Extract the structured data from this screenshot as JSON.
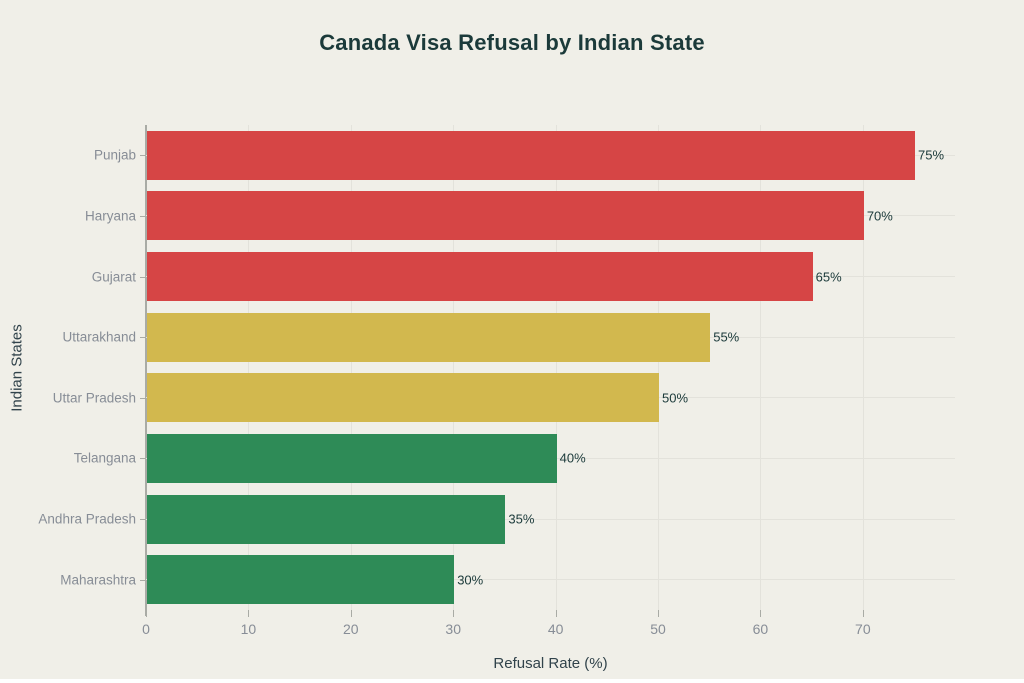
{
  "chart_data": {
    "type": "bar",
    "orientation": "horizontal",
    "title": "Canada Visa Refusal by Indian State",
    "xlabel": "Refusal Rate (%)",
    "ylabel": "Indian States",
    "categories": [
      "Punjab",
      "Haryana",
      "Gujarat",
      "Uttarakhand",
      "Uttar Pradesh",
      "Telangana",
      "Andhra Pradesh",
      "Maharashtra"
    ],
    "values": [
      75,
      70,
      65,
      55,
      50,
      40,
      35,
      30
    ],
    "value_labels": [
      "75%",
      "70%",
      "65%",
      "55%",
      "50%",
      "40%",
      "35%",
      "30%"
    ],
    "bar_colors": [
      "red",
      "red",
      "red",
      "yellow",
      "yellow",
      "green",
      "green",
      "green"
    ],
    "palette": {
      "red": "#d64545",
      "yellow": "#d2b84e",
      "green": "#2e8b57"
    },
    "xlim": [
      0,
      79
    ],
    "xticks": [
      0,
      10,
      20,
      30,
      40,
      50,
      60,
      70
    ],
    "xtick_labels": [
      "0",
      "10",
      "20",
      "30",
      "40",
      "50",
      "60",
      "70"
    ],
    "grid": true,
    "legend": false
  },
  "style": {
    "background": "#f0efe8",
    "title_color": "#1b3a3a",
    "axis_title_color": "#31434b",
    "tick_label_color": "#878d96",
    "value_label_color": "#1b3a3a",
    "gridline_color": "#e3e2db",
    "axis_line_color": "#a9aba5"
  }
}
